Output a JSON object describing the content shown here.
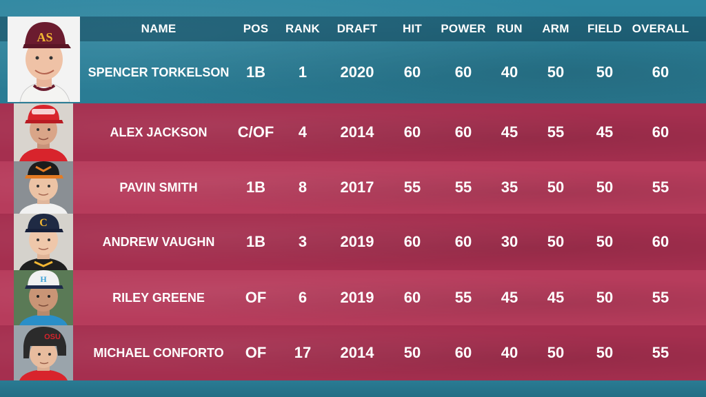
{
  "header": {
    "name": "NAME",
    "pos": "POS",
    "rank": "RANK",
    "draft": "DRAFT",
    "hit": "HIT",
    "power": "POWER",
    "run": "RUN",
    "arm": "ARM",
    "field": "FIELD",
    "overall": "OVERALL"
  },
  "featured": {
    "name": "SPENCER TORKELSON",
    "pos": "1B",
    "rank": "1",
    "draft": "2020",
    "hit": "60",
    "power": "60",
    "run": "40",
    "arm": "50",
    "field": "50",
    "overall": "60",
    "cap_color": "#6b1c2f",
    "cap_logo_color": "#f2b632"
  },
  "rows": [
    {
      "name": "ALEX JACKSON",
      "pos": "C/OF",
      "rank": "4",
      "draft": "2014",
      "hit": "60",
      "power": "60",
      "run": "45",
      "arm": "55",
      "field": "45",
      "overall": "60",
      "cap_color": "#d8242c"
    },
    {
      "name": "PAVIN SMITH",
      "pos": "1B",
      "rank": "8",
      "draft": "2017",
      "hit": "55",
      "power": "55",
      "run": "35",
      "arm": "50",
      "field": "50",
      "overall": "55",
      "cap_color": "#e37b24"
    },
    {
      "name": "ANDREW VAUGHN",
      "pos": "1B",
      "rank": "3",
      "draft": "2019",
      "hit": "60",
      "power": "60",
      "run": "30",
      "arm": "50",
      "field": "50",
      "overall": "60",
      "cap_color": "#1f2a44"
    },
    {
      "name": "RILEY GREENE",
      "pos": "OF",
      "rank": "6",
      "draft": "2019",
      "hit": "60",
      "power": "55",
      "run": "45",
      "arm": "45",
      "field": "50",
      "overall": "55",
      "cap_color": "#f1f1f1"
    },
    {
      "name": "MICHAEL CONFORTO",
      "pos": "OF",
      "rank": "17",
      "draft": "2014",
      "hit": "50",
      "power": "60",
      "run": "40",
      "arm": "50",
      "field": "50",
      "overall": "55",
      "cap_color": "#2b2b2b"
    }
  ]
}
